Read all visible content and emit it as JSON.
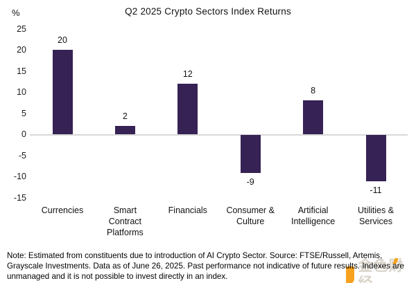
{
  "chart_data": {
    "type": "bar",
    "title": "Q2 2025 Crypto Sectors Index Returns",
    "ylabel": "%",
    "xlabel": "",
    "categories": [
      "Currencies",
      "Smart\nContract\nPlatforms",
      "Financials",
      "Consumer &\nCulture",
      "Artificial\nIntelligence",
      "Utilities &\nServices"
    ],
    "values": [
      20,
      2,
      12,
      -9,
      8,
      -11
    ],
    "y_ticks": [
      25,
      20,
      15,
      10,
      5,
      0,
      -5,
      -10,
      -15
    ],
    "ylim": [
      -15,
      25
    ],
    "grid": false,
    "legend": false,
    "bar_color": "#362254",
    "baseline_color": "#d8d8d8"
  },
  "note": {
    "text": "Note: Estimated from constituents due to introduction of AI Crypto Sector. Source: FTSE/Russell, Artemis, Grayscale Investments. Data as of June 26, 2025. Past performance not indicative of future results. Indexes are unmanaged and it is not possible to invest directly in an index."
  },
  "watermark": {
    "text": "金色财经",
    "accent_color": "#f6a21e"
  }
}
